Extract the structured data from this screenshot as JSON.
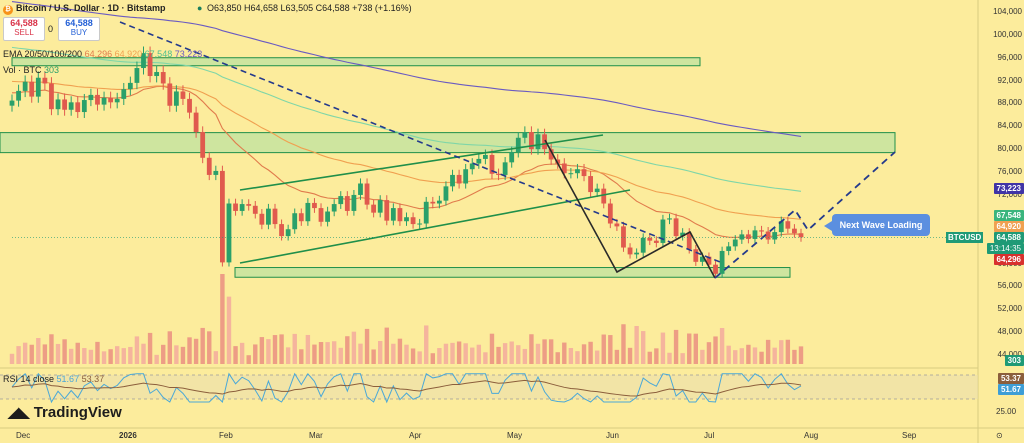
{
  "header": {
    "title": "Bitcoin / U.S. Dollar · 1D · Bitstamp",
    "ohlc": "O63,850 H64,658 L63,505 C64,588 +738 (+1.16%)",
    "sell_value": "64,588",
    "sell_label": "SELL",
    "spread": "0",
    "buy_value": "64,588",
    "buy_label": "BUY",
    "ema_label": "EMA 20/50/100/200",
    "ema_values": [
      "64,296",
      "64,920",
      "67,548",
      "73,223"
    ],
    "vol_label": "Vol · BTC",
    "vol_value": "303",
    "rsi_label": "RSI 14 close",
    "rsi_values": [
      "51.67",
      "53.37"
    ],
    "watermark": "TradingView"
  },
  "annotation": {
    "text": "Next Wave Loading",
    "color": "#5b8fe0"
  },
  "price_tags": {
    "symbol": "BTCUSD",
    "price": "64,588",
    "countdown": "13:14:35",
    "ema200": "73,223",
    "ema100": "67,548",
    "ema50": "64,920",
    "ema20": "64,296",
    "vol": "303",
    "rsi_ma": "53.37",
    "rsi": "51.67"
  },
  "colors": {
    "background": "#fcec9c",
    "up": "#2aa06a",
    "down": "#e05a4e",
    "ema20": "#e07b4c",
    "ema50": "#f0a050",
    "ema100": "#7fd6a8",
    "ema200": "#6a5ac2",
    "zone_fill": "#bfe3a0",
    "zone_stroke": "#1f8f4a",
    "channel": "#1f8f4a",
    "dash": "#243a8c",
    "rsi": "#4aa8d8",
    "rsi_ma": "#8b5e3c"
  },
  "chart_data": {
    "type": "candlestick",
    "title": "Bitcoin / U.S. Dollar · 1D · Bitstamp",
    "y_axis_ticks": [
      "104,000",
      "100,000",
      "96,000",
      "92,000",
      "88,000",
      "84,000",
      "80,000",
      "76,000",
      "72,000",
      "68,000",
      "64,000",
      "60,000",
      "56,000",
      "52,000",
      "48,000",
      "44,000"
    ],
    "ylim": [
      44000,
      104000
    ],
    "x_axis_ticks": [
      "Dec",
      "2026",
      "Feb",
      "Mar",
      "Apr",
      "May",
      "Jun",
      "Jul",
      "Aug",
      "Sep",
      "⊙"
    ],
    "last_close": 64588,
    "zones": [
      {
        "label": "zone-top",
        "low": 94600,
        "high": 96000
      },
      {
        "label": "zone-mid",
        "low": 79400,
        "high": 82900
      },
      {
        "label": "zone-bottom",
        "low": 57600,
        "high": 59300
      }
    ],
    "price_series": [
      88500,
      90200,
      91800,
      89200,
      92500,
      91500,
      87000,
      88700,
      86900,
      88200,
      86500,
      88600,
      89500,
      87800,
      89000,
      88200,
      88800,
      90500,
      91600,
      94200,
      96800,
      92800,
      93500,
      91500,
      87600,
      90100,
      88800,
      86400,
      83000,
      78500,
      75500,
      76200,
      60200,
      70500,
      69200,
      70400,
      70100,
      68700,
      66800,
      69600,
      66900,
      64800,
      66000,
      68800,
      67400,
      70600,
      69700,
      67300,
      69100,
      70400,
      71800,
      69200,
      72000,
      74000,
      70300,
      68900,
      71100,
      67500,
      69700,
      67400,
      68100,
      66900,
      67000,
      70800,
      70500,
      71000,
      73500,
      75500,
      74000,
      76500,
      77500,
      78300,
      79000,
      75700,
      75500,
      77700,
      79500,
      82000,
      83000,
      80000,
      82600,
      80000,
      78200,
      77500,
      75800,
      75800,
      76500,
      75300,
      72500,
      73100,
      70500,
      67000,
      66500,
      62800,
      61600,
      61900,
      64500,
      64000,
      63600,
      67700,
      67900,
      64800,
      65400,
      62500,
      60300,
      61200,
      59800,
      58200,
      62200,
      63000,
      64200,
      65100,
      64300,
      65800,
      65600,
      64200,
      65500,
      67400,
      66100,
      65300,
      64588
    ],
    "volume_scale": {
      "labels": [
        "52,000",
        "48,000",
        "44,000"
      ]
    },
    "rsi": {
      "ylim": [
        25,
        75
      ],
      "ticks": [
        "25.00"
      ],
      "last": 51.67,
      "ma_last": 53.37
    }
  }
}
